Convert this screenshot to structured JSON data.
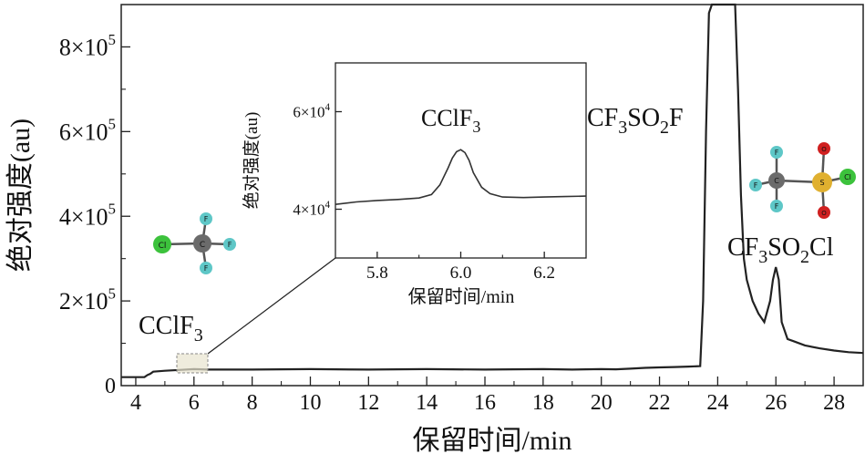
{
  "chart_data": [
    {
      "type": "line",
      "xlabel": "保留时间/min",
      "ylabel": "绝对强度(au)",
      "xlim": [
        3.5,
        29
      ],
      "ylim": [
        0,
        900000
      ],
      "x_ticks": [
        "4",
        "6",
        "8",
        "10",
        "12",
        "14",
        "16",
        "18",
        "20",
        "22",
        "24",
        "26",
        "28"
      ],
      "y_ticks": [
        {
          "value": 200000,
          "mantissa": "2×10",
          "exp": "5"
        },
        {
          "value": 400000,
          "mantissa": "4×10",
          "exp": "5"
        },
        {
          "value": 600000,
          "mantissa": "6×10",
          "exp": "5"
        },
        {
          "value": 800000,
          "mantissa": "8×10",
          "exp": "5"
        }
      ],
      "y_zero_label": "0",
      "series": [
        {
          "x": [
            3.5,
            4.3,
            4.4,
            4.5,
            4.6,
            5.0,
            5.5,
            6.0,
            6.5,
            8,
            10,
            12,
            14,
            16,
            18,
            19,
            20,
            20.5,
            21,
            21.5,
            22,
            22.5,
            23,
            23.4,
            23.5,
            23.6,
            23.7,
            23.8,
            23.9,
            24.0,
            24.1,
            24.2,
            24.3,
            24.4,
            24.5,
            24.6,
            24.7,
            24.8,
            24.9,
            25.0,
            25.2,
            25.4,
            25.6,
            25.8,
            25.9,
            26.0,
            26.1,
            26.2,
            26.4,
            26.6,
            27,
            27.5,
            28,
            28.5,
            29
          ],
          "y": [
            20000,
            20000,
            25000,
            28000,
            33000,
            35000,
            37000,
            39000,
            38000,
            38000,
            39000,
            38000,
            39000,
            38000,
            39000,
            38000,
            39000,
            38500,
            40000,
            42000,
            43000,
            44000,
            45000,
            46000,
            200000,
            600000,
            880000,
            900000,
            900000,
            900000,
            900000,
            900000,
            900000,
            900000,
            900000,
            900000,
            700000,
            450000,
            300000,
            250000,
            200000,
            170000,
            150000,
            200000,
            250000,
            280000,
            250000,
            150000,
            110000,
            105000,
            95000,
            88000,
            83000,
            79000,
            77000
          ]
        }
      ],
      "annotations": {
        "cclf3": {
          "main": "CClF",
          "sub": "3"
        },
        "cf3so2f": {
          "a": "CF",
          "b": "3",
          "c": "SO",
          "d": "2",
          "e": "F"
        },
        "cf3so2cl": {
          "a": "CF",
          "b": "3",
          "c": "SO",
          "d": "2",
          "e": "Cl"
        }
      }
    },
    {
      "type": "line",
      "xlabel": "保留时间/min",
      "ylabel": "绝对强度(au)",
      "xlim": [
        5.7,
        6.3
      ],
      "ylim": [
        30000,
        70000
      ],
      "x_ticks": [
        "5.8",
        "6.0",
        "6.2"
      ],
      "y_ticks": [
        {
          "value": 40000,
          "mantissa": "4×10",
          "exp": "4"
        },
        {
          "value": 60000,
          "mantissa": "6×10",
          "exp": "4"
        }
      ],
      "series": [
        {
          "x": [
            5.7,
            5.75,
            5.8,
            5.85,
            5.9,
            5.93,
            5.95,
            5.97,
            5.98,
            5.99,
            6.0,
            6.01,
            6.02,
            6.03,
            6.05,
            6.07,
            6.1,
            6.15,
            6.2,
            6.25,
            6.3
          ],
          "y": [
            41000,
            41500,
            41800,
            42000,
            42300,
            43000,
            45000,
            48500,
            50500,
            51800,
            52200,
            51600,
            50000,
            47500,
            44500,
            43200,
            42500,
            42400,
            42500,
            42600,
            42700
          ]
        }
      ],
      "annotation": {
        "main": "CClF",
        "sub": "3"
      }
    }
  ],
  "molecules": {
    "cclf3": {
      "center": "C",
      "atoms": [
        "Cl",
        "F",
        "F",
        "F"
      ]
    },
    "cf3so2cl": {
      "atoms": [
        "F",
        "F",
        "F",
        "C",
        "S",
        "O",
        "O",
        "Cl"
      ]
    }
  }
}
